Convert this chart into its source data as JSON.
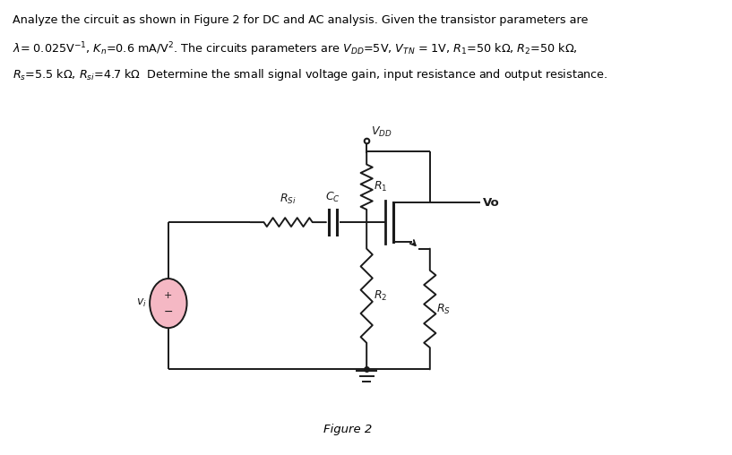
{
  "bg_color": "#ffffff",
  "circuit_color": "#1a1a1a",
  "source_color": "#f5b8c4",
  "figure_label": "Figure 2",
  "header_line1": "Analyze the circuit as shown in Figure 2 for DC and AC analysis. Given the transistor parameters are",
  "header_line2": "$\\lambda$= 0.025V$^{-1}$, $K_n$=0.6 mA/V$^{2}$. The circuits parameters are $V_{DD}$=5V, $V_{TN}$ = 1V, $R_1$=50 k$\\Omega$, $R_2$=50 k$\\Omega$,",
  "header_line3": "$R_s$=5.5 k$\\Omega$, $R_{si}$=4.7 k$\\Omega$  Determine the small signal voltage gain, input resistance and output resistance."
}
